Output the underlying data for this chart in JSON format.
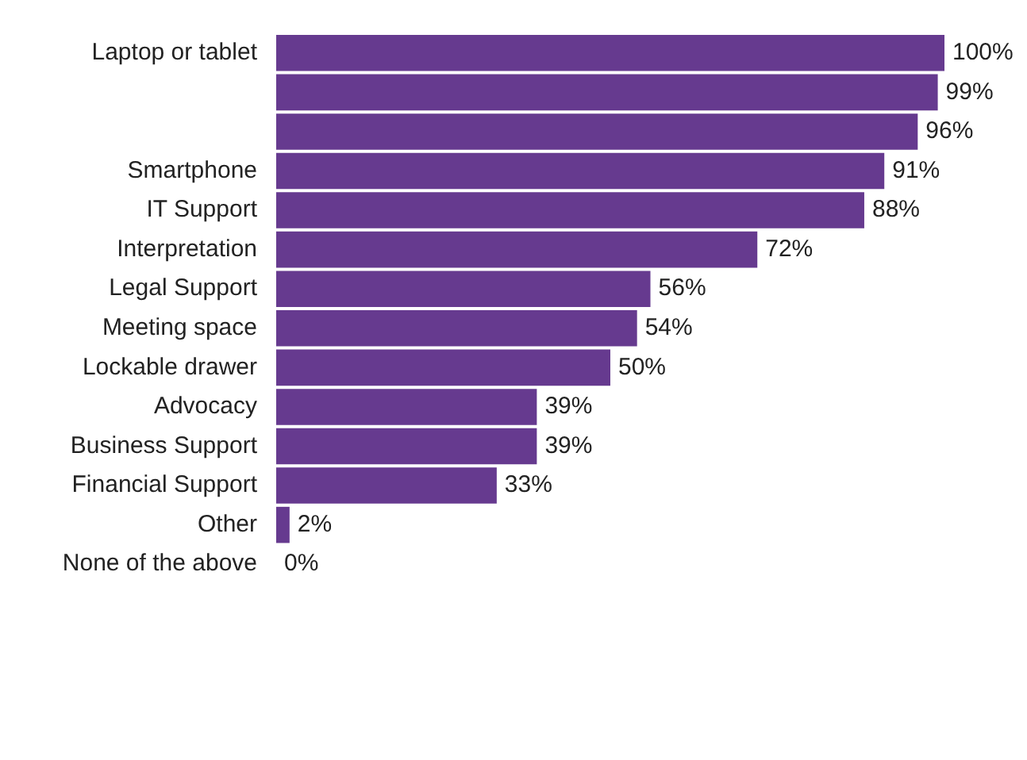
{
  "chart_data": {
    "type": "bar",
    "orientation": "horizontal",
    "categories": [
      "Laptop or tablet",
      null,
      null,
      "Smartphone",
      "IT Support",
      "Interpretation",
      "Legal Support",
      "Meeting space",
      "Lockable drawer",
      "Advocacy",
      "Business Support",
      "Financial Support",
      "Other",
      "None of the above"
    ],
    "values": [
      100,
      99,
      96,
      91,
      88,
      72,
      56,
      54,
      50,
      39,
      39,
      33,
      2,
      0
    ],
    "value_labels": [
      "100%",
      "99%",
      "96%",
      "91%",
      "88%",
      "72%",
      "56%",
      "54%",
      "50%",
      "39%",
      "39%",
      "33%",
      "2%",
      "0%"
    ],
    "color": "#663a8f",
    "xlim": [
      0,
      100
    ],
    "tick_labels": "y",
    "legend": false
  }
}
